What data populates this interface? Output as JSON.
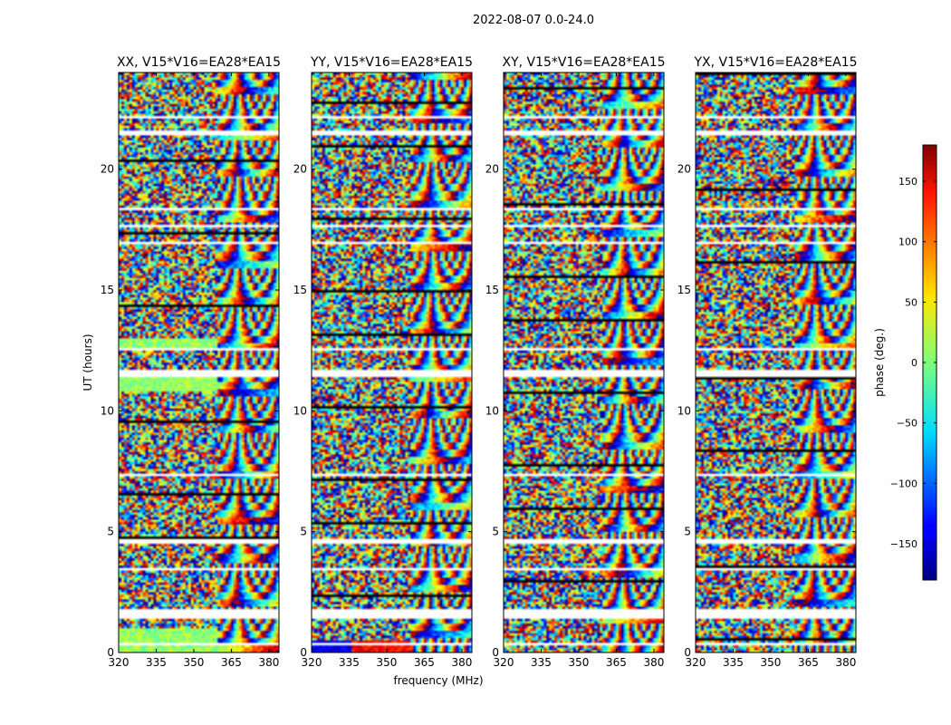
{
  "figure": {
    "suptitle": "2022-08-07 0.0-24.0",
    "xlabel": "frequency (MHz)",
    "ylabel": "UT (hours)"
  },
  "chart_data": {
    "type": "heatmap",
    "colormap": "jet",
    "x_ticks": [
      "320",
      "335",
      "350",
      "365",
      "380"
    ],
    "x_tick_values": [
      320,
      335,
      350,
      365,
      380
    ],
    "xlim": [
      320,
      384
    ],
    "y_ticks": [
      "0",
      "5",
      "10",
      "15",
      "20"
    ],
    "y_tick_values": [
      0,
      5,
      10,
      15,
      20
    ],
    "ylim": [
      0,
      24
    ],
    "panels": [
      {
        "title": "XX, V15*V16=EA28*EA15"
      },
      {
        "title": "YY, V15*V16=EA28*EA15"
      },
      {
        "title": "XY, V15*V16=EA28*EA15"
      },
      {
        "title": "YX, V15*V16=EA28*EA15"
      }
    ],
    "colorbar": {
      "label": "phase (deg.)",
      "range": [
        -180,
        180
      ],
      "ticks": [
        "150",
        "100",
        "50",
        "0",
        "−50",
        "−100",
        "−150"
      ],
      "tick_values": [
        150,
        100,
        50,
        0,
        -50,
        -100,
        -150
      ]
    }
  }
}
